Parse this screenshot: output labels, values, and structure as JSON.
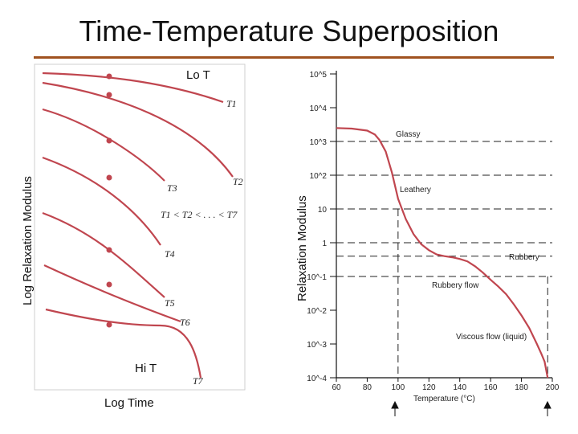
{
  "slide": {
    "title": "Time-Temperature Superposition",
    "accent_color": "#a0521f"
  },
  "left_panel": {
    "y_axis_label": "Log Relaxation Modulus",
    "x_axis_label": "Log Time",
    "top_note": "Lo T",
    "bottom_note": "Hi T",
    "curve_color": "#c0464f",
    "curve_labels": [
      "T1",
      "T2",
      "T3",
      "T4",
      "T5",
      "T6",
      "T7"
    ],
    "order_relation": "T1 < T2 < . . . < T7"
  },
  "right_panel": {
    "y_axis_label": "Relaxation Modulus",
    "x_axis_title": "Temperature (°C)",
    "curve_color": "#c0464f",
    "y_ticks": [
      "10^5",
      "10^4",
      "10^3",
      "10^2",
      "10",
      "1",
      "10^-1",
      "10^-2",
      "10^-3",
      "10^-4"
    ],
    "x_ticks": [
      "60",
      "80",
      "100",
      "120",
      "140",
      "160",
      "180",
      "200"
    ],
    "regions": [
      "Glassy",
      "Leathery",
      "Rubbery",
      "Rubbery flow",
      "Viscous flow (liquid)"
    ]
  },
  "chart_data": {
    "type": "line",
    "xlabel": "Temperature (°C)",
    "ylabel": "Relaxation Modulus",
    "y_scale": "log",
    "xlim": [
      60,
      200
    ],
    "ylim": [
      0.0001,
      100000
    ],
    "series": [
      {
        "x": [
          60,
          70,
          80,
          85,
          88,
          92,
          96,
          100,
          105,
          110,
          115,
          120,
          125,
          130,
          135,
          140,
          145,
          150,
          155,
          160,
          165,
          170,
          175,
          180,
          185,
          190,
          193,
          195,
          197
        ],
        "values": [
          2500,
          2400,
          2100,
          1600,
          1100,
          500,
          120,
          20,
          5,
          1.8,
          0.9,
          0.6,
          0.45,
          0.4,
          0.37,
          0.33,
          0.28,
          0.2,
          0.13,
          0.08,
          0.05,
          0.03,
          0.015,
          0.007,
          0.003,
          0.001,
          0.0005,
          0.0003,
          0.0001
        ]
      }
    ]
  }
}
